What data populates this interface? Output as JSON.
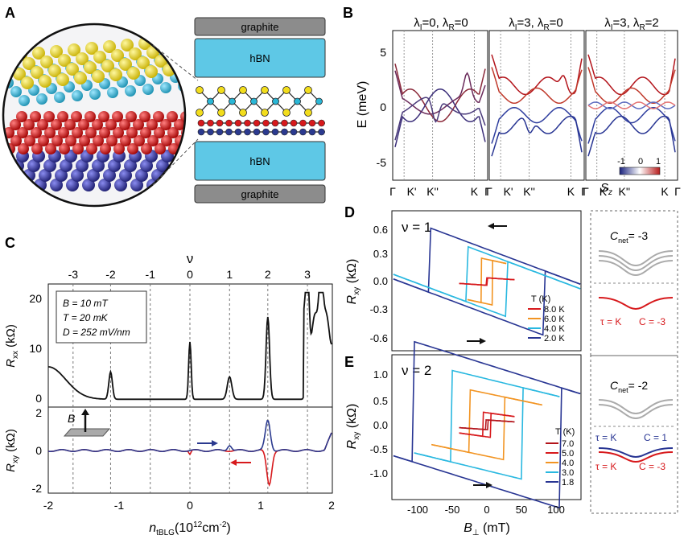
{
  "figure": {
    "panel_labels": [
      "A",
      "B",
      "C",
      "D",
      "E"
    ],
    "panelA": {
      "layers": [
        "graphite",
        "hBN",
        "hBN",
        "graphite"
      ]
    },
    "panelB": {
      "subplot_titles": [
        {
          "l1": "λ",
          "s1": "I",
          "m": "=0, λ",
          "s2": "R",
          "e": "=0"
        },
        {
          "l1": "λ",
          "s1": "I",
          "m": "=3, λ",
          "s2": "R",
          "e": "=0"
        },
        {
          "l1": "λ",
          "s1": "I",
          "m": "=3, λ",
          "s2": "R",
          "e": "=2"
        }
      ],
      "ylabel": "E (meV)",
      "yticks": [
        "5",
        "0",
        "-5"
      ],
      "xticks": [
        "Γ",
        "K'",
        "K''",
        "K",
        "Γ"
      ],
      "colorbar": {
        "label": "S",
        "label_sub": "z",
        "ticks": [
          "-1",
          "0",
          "1"
        ],
        "colors": {
          "low": "#1a237e",
          "mid": "#ffffff",
          "high": "#b71c1c"
        }
      }
    },
    "panelC": {
      "top_axis_label": "ν",
      "top_ticks": [
        "-3",
        "-2",
        "-1",
        "0",
        "1",
        "2",
        "3"
      ],
      "upper": {
        "ylabel_main": "R",
        "ylabel_sub": "xx",
        "ylabel_unit": " (kΩ)",
        "yticks": [
          "20",
          "10",
          "0"
        ],
        "legend": [
          "B = 10 mT",
          "T = 20 mK",
          "D = 252 mV/nm"
        ]
      },
      "lower": {
        "ylabel_main": "R",
        "ylabel_sub": "xy",
        "ylabel_unit": " (kΩ)",
        "yticks": [
          "2",
          "0",
          "-2"
        ],
        "inset_label": "B"
      },
      "xticks": [
        "-2",
        "-1",
        "0",
        "1",
        "2"
      ],
      "xlabel_main": "n",
      "xlabel_sub": "tBLG",
      "xlabel_unit": "(10",
      "xlabel_exp": "12",
      "xlabel_end": "cm",
      "xlabel_exp2": "-2",
      "xlabel_close": ")"
    },
    "panelD": {
      "nu_label": "ν = 1",
      "ylabel_main": "R",
      "ylabel_sub": "xy",
      "ylabel_unit": " (kΩ)",
      "yticks": [
        "0.6",
        "0.3",
        "0.0",
        "-0.3",
        "-0.6"
      ],
      "legend_title": "T (K)",
      "legend": [
        "8.0 K",
        "6.0 K",
        "4.0 K",
        "2.0 K"
      ],
      "side": {
        "cnet_main": "C",
        "cnet_sub": "net",
        "cnet_val": "= -3",
        "tau": "τ = K",
        "c": "C = -3"
      }
    },
    "panelE": {
      "nu_label": "ν = 2",
      "ylabel_main": "R",
      "ylabel_sub": "xy",
      "ylabel_unit": " (kΩ)",
      "yticks": [
        "1.0",
        "0.5",
        "0.0",
        "-0.5",
        "-1.0"
      ],
      "xticks": [
        "-100",
        "-50",
        "0",
        "50",
        "100"
      ],
      "xlabel_main": "B",
      "xlabel_sub": "⊥",
      "xlabel_unit": " (mT)",
      "legend_title": "T (K)",
      "legend": [
        "7.0",
        "5.0",
        "4.0",
        "3.0",
        "1.8"
      ],
      "side": {
        "cnet_main": "C",
        "cnet_sub": "net",
        "cnet_val": "= -2",
        "tau1": "τ = K",
        "c1": "C = 1",
        "tau2": "τ = K",
        "c2": "C = -3"
      }
    },
    "colors": {
      "hbn": "#5ec8e6",
      "graphite": "#8c8c8c",
      "yellow": "#f2dd1c",
      "cyan": "#29b6d6",
      "red": "#d7191c",
      "blue": "#2b3a8f",
      "orange": "#f29422",
      "lightblue": "#29b8e0",
      "darkred": "#b3141b",
      "navy": "#283593"
    }
  }
}
